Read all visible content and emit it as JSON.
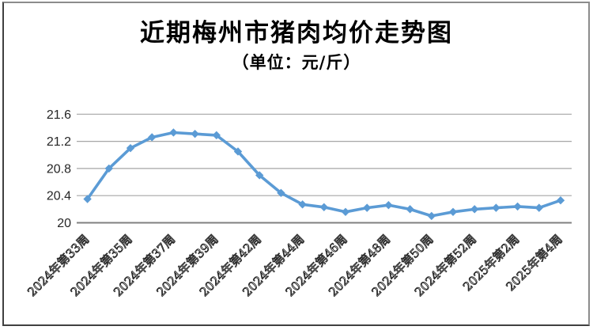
{
  "header": {
    "title": "近期梅州市猪肉均价走势图",
    "subtitle": "（单位：元/斤）"
  },
  "chart_data": {
    "type": "line",
    "title": "近期梅州市猪肉均价走势图",
    "unit_label": "（单位：元/斤）",
    "series": [
      {
        "name": "猪肉均价",
        "values": [
          20.35,
          20.8,
          21.1,
          21.26,
          21.33,
          21.31,
          21.29,
          21.05,
          20.7,
          20.44,
          20.27,
          20.23,
          20.16,
          20.22,
          20.26,
          20.2,
          20.1,
          20.16,
          20.2,
          20.22,
          20.24,
          20.22,
          20.33
        ]
      }
    ],
    "x_tick_labels": [
      "2024年第33周",
      "2024年第35周",
      "2024年第37周",
      "2024年第39周",
      "2024年第42周",
      "2024年第44周",
      "2024年第46周",
      "2024年第48周",
      "2024年第50周",
      "2024年第52周",
      "2025年第2周",
      "2025年第4周"
    ],
    "x_label_every": 2,
    "y_ticks": [
      20,
      20.4,
      20.8,
      21.2,
      21.6
    ],
    "y_tick_labels": [
      "20",
      "20.4",
      "20.8",
      "21.2",
      "21.6"
    ],
    "ylim": [
      20,
      21.6
    ],
    "grid": true,
    "legend": false,
    "line_color": "#5B9BD5",
    "marker": "diamond",
    "grid_color": "#a6a6a6",
    "axis_color": "#808080",
    "tick_label_color": "#262626"
  }
}
